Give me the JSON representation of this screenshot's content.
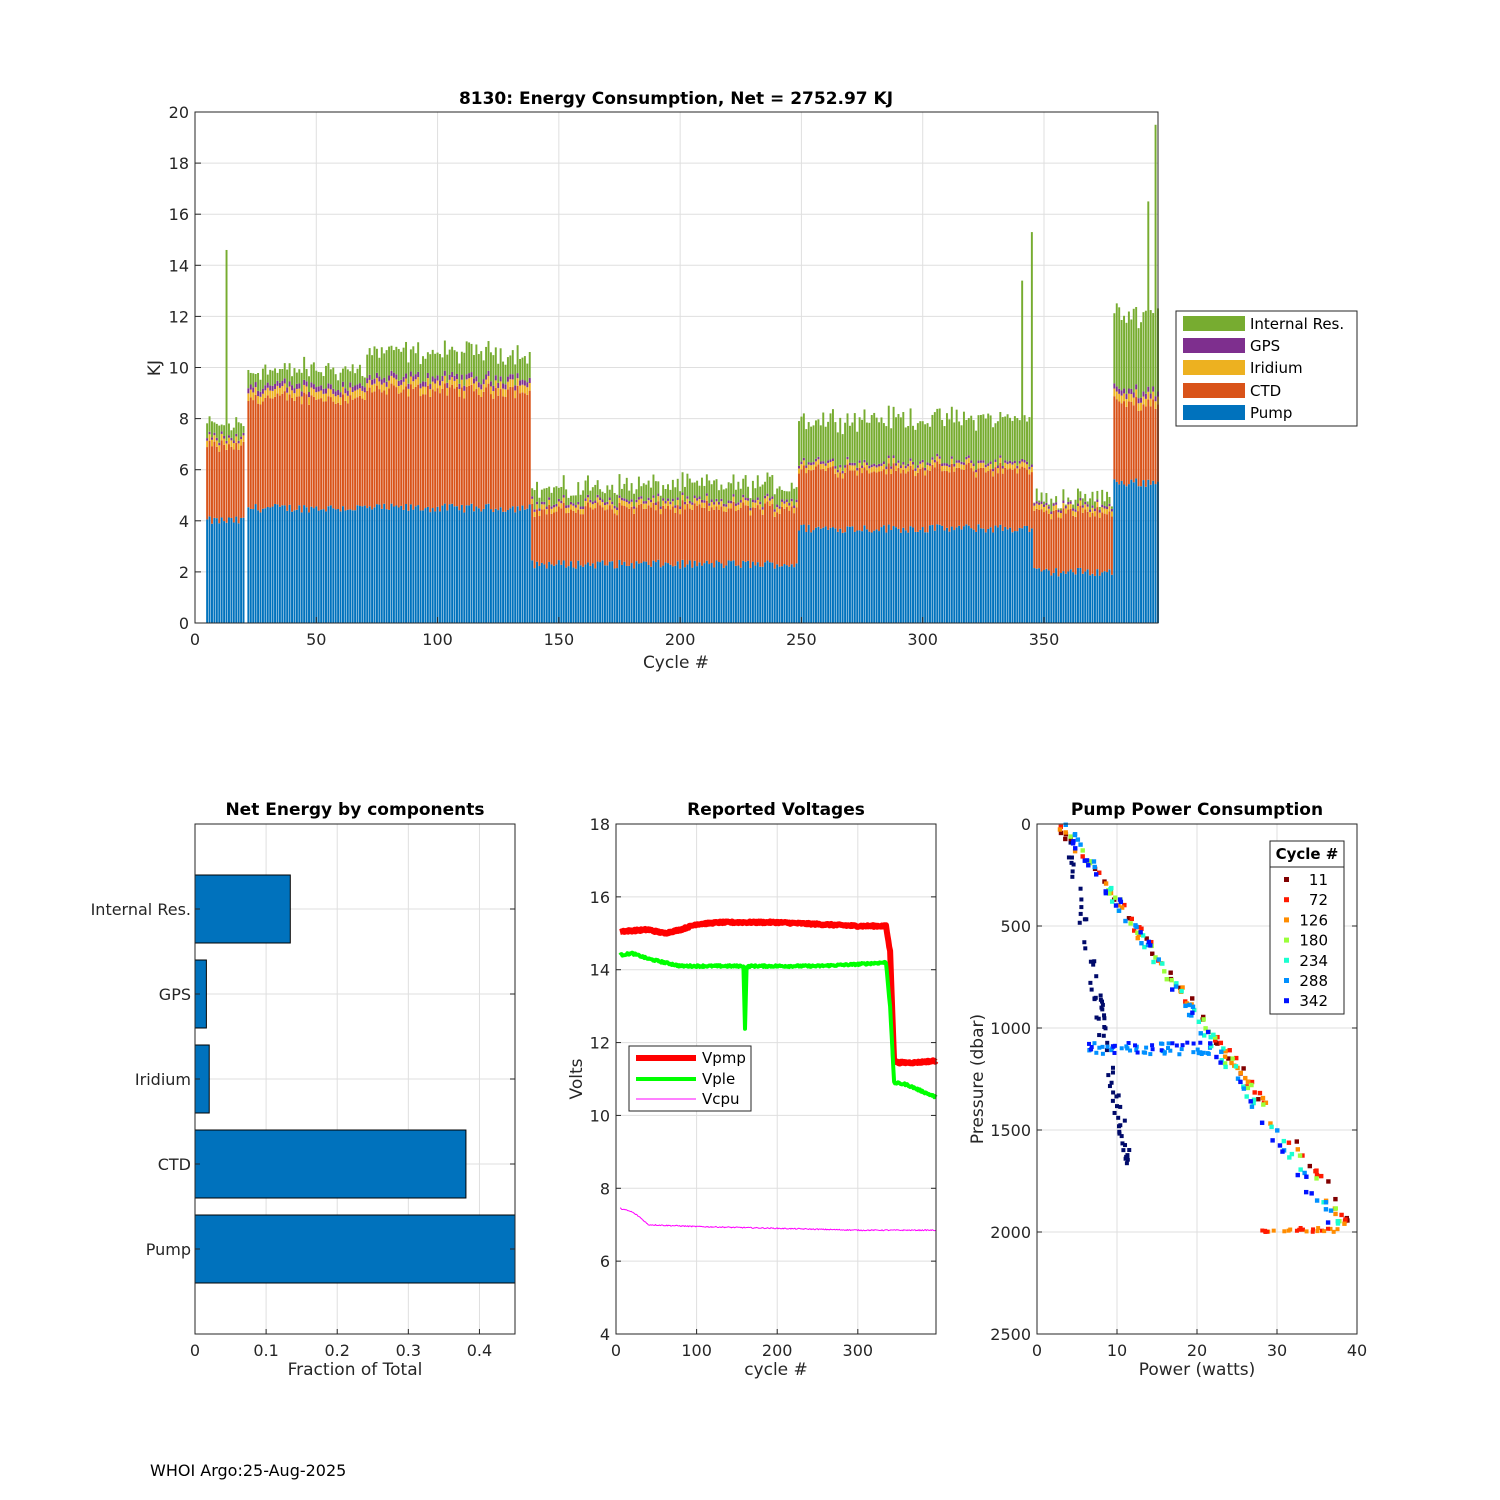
{
  "footer": "WHOI Argo:25-Aug-2025",
  "colors": {
    "pump": "#0072BD",
    "ctd": "#D95319",
    "iridium": "#EDB120",
    "gps": "#7E2F8E",
    "internal": "#77AC30",
    "vpmp": "#FF0000",
    "vple": "#00FF00",
    "vcpu": "#FF00FF"
  },
  "chart_data": [
    {
      "id": "energy",
      "type": "bar",
      "stacked": true,
      "title": "8130: Energy Consumption,  Net = 2752.97 KJ",
      "xlabel": "Cycle #",
      "ylabel": "KJ",
      "xlim": [
        0,
        397
      ],
      "ylim": [
        0,
        20
      ],
      "xticks": [
        0,
        50,
        100,
        150,
        200,
        250,
        300,
        350
      ],
      "yticks": [
        0,
        2,
        4,
        6,
        8,
        10,
        12,
        14,
        16,
        18,
        20
      ],
      "legend": [
        "Internal Res.",
        "GPS",
        "Iridium",
        "CTD",
        "Pump"
      ],
      "legend_position": "outside-right",
      "segments": [
        {
          "from": 5,
          "to": 20,
          "pump": 4.0,
          "ctd": 2.9,
          "iridium": 0.25,
          "gps": 0.1,
          "internal": 0.5
        },
        {
          "from": 22,
          "to": 70,
          "pump": 4.5,
          "ctd": 4.3,
          "iridium": 0.3,
          "gps": 0.2,
          "internal": 0.6
        },
        {
          "from": 71,
          "to": 138,
          "pump": 4.5,
          "ctd": 4.6,
          "iridium": 0.3,
          "gps": 0.2,
          "internal": 1.0
        },
        {
          "from": 139,
          "to": 160,
          "pump": 2.3,
          "ctd": 2.1,
          "iridium": 0.2,
          "gps": 0.1,
          "internal": 0.5
        },
        {
          "from": 161,
          "to": 248,
          "pump": 2.3,
          "ctd": 2.2,
          "iridium": 0.2,
          "gps": 0.1,
          "internal": 0.6
        },
        {
          "from": 249,
          "to": 345,
          "pump": 3.7,
          "ctd": 2.3,
          "iridium": 0.2,
          "gps": 0.1,
          "internal": 1.7
        },
        {
          "from": 346,
          "to": 378,
          "pump": 2.0,
          "ctd": 2.3,
          "iridium": 0.2,
          "gps": 0.1,
          "internal": 0.3
        },
        {
          "from": 379,
          "to": 397,
          "pump": 5.5,
          "ctd": 3.1,
          "iridium": 0.3,
          "gps": 0.2,
          "internal": 3.0
        }
      ],
      "spikes": [
        {
          "cycle": 13,
          "total": 14.6
        },
        {
          "cycle": 341,
          "total": 13.4
        },
        {
          "cycle": 345,
          "total": 15.3
        },
        {
          "cycle": 393,
          "total": 16.5
        },
        {
          "cycle": 396,
          "total": 19.5
        }
      ]
    },
    {
      "id": "net-energy",
      "type": "bar",
      "orientation": "horizontal",
      "title": "Net Energy by components",
      "xlabel": "Fraction of Total",
      "xlim": [
        0,
        0.45
      ],
      "xticks": [
        0,
        0.1,
        0.2,
        0.3,
        0.4
      ],
      "xticklabels": [
        "0",
        "0.1",
        "0.2",
        "0.3",
        "0.4"
      ],
      "categories": [
        "Internal Res.",
        "GPS",
        "Iridium",
        "CTD",
        "Pump"
      ],
      "values": [
        0.134,
        0.016,
        0.02,
        0.381,
        0.45
      ]
    },
    {
      "id": "voltages",
      "type": "line",
      "title": "Reported Voltages",
      "xlabel": "cycle #",
      "ylabel": "Volts",
      "xlim": [
        0,
        397
      ],
      "ylim": [
        4,
        18
      ],
      "xticks": [
        0,
        100,
        200,
        300
      ],
      "yticks": [
        4,
        6,
        8,
        10,
        12,
        14,
        16,
        18
      ],
      "legend_position": "middle-left",
      "series": [
        {
          "name": "Vpmp",
          "x": [
            5,
            40,
            60,
            80,
            100,
            130,
            160,
            200,
            250,
            300,
            335,
            340,
            345,
            350,
            370,
            397
          ],
          "y": [
            15.05,
            15.1,
            15.0,
            15.1,
            15.25,
            15.3,
            15.3,
            15.3,
            15.25,
            15.2,
            15.2,
            14.5,
            11.5,
            11.45,
            11.45,
            11.5
          ]
        },
        {
          "name": "Vple",
          "x": [
            5,
            20,
            40,
            60,
            80,
            100,
            130,
            158,
            160,
            162,
            165,
            200,
            250,
            300,
            335,
            340,
            345,
            360,
            397
          ],
          "y": [
            14.4,
            14.45,
            14.3,
            14.2,
            14.1,
            14.1,
            14.1,
            14.1,
            12.4,
            14.05,
            14.1,
            14.1,
            14.1,
            14.15,
            14.2,
            13.0,
            10.9,
            10.85,
            10.5
          ]
        },
        {
          "name": "Vcpu",
          "x": [
            5,
            20,
            30,
            40,
            100,
            200,
            300,
            397
          ],
          "y": [
            7.45,
            7.35,
            7.2,
            7.0,
            6.95,
            6.9,
            6.85,
            6.85
          ]
        }
      ]
    },
    {
      "id": "pump-power",
      "type": "scatter",
      "title": "Pump Power Consumption",
      "xlabel": "Power (watts)",
      "ylabel": "Pressure (dbar)",
      "xlim": [
        0,
        40
      ],
      "ylim": [
        0,
        2500
      ],
      "y_reversed": true,
      "xticks": [
        0,
        10,
        20,
        30,
        40
      ],
      "yticks": [
        0,
        500,
        1000,
        1500,
        2000,
        2500
      ],
      "legend_title": "Cycle #",
      "legend_position": "top-right",
      "series": [
        {
          "name": "11",
          "color": "#800000",
          "slope": 52.5,
          "offset": -130
        },
        {
          "name": "72",
          "color": "#FF1A00",
          "slope": 53.5,
          "offset": -150
        },
        {
          "name": "126",
          "color": "#FF8C00",
          "slope": 54.5,
          "offset": -160
        },
        {
          "name": "180",
          "color": "#9AFF3A",
          "slope": 55.5,
          "offset": -170
        },
        {
          "name": "234",
          "color": "#1AFFD0",
          "slope": 56.5,
          "offset": -180
        },
        {
          "name": "288",
          "color": "#0090FF",
          "slope": 57.5,
          "offset": -190
        },
        {
          "name": "342",
          "color": "#0012FF",
          "slope": 58.5,
          "offset": -200
        }
      ],
      "outlier_series": {
        "color": "#000A6A",
        "slope": 205,
        "offset": -680
      }
    }
  ]
}
